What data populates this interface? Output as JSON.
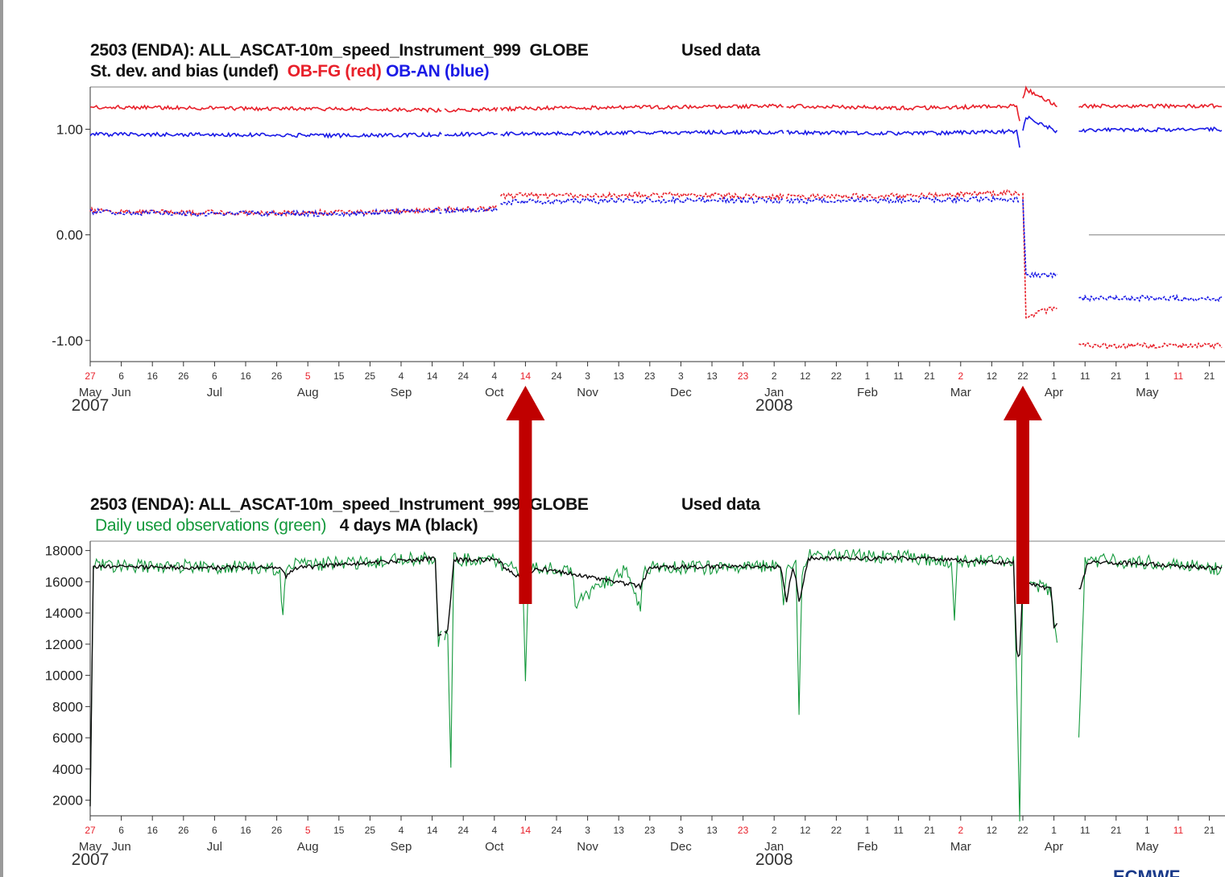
{
  "chart_data": [
    {
      "type": "line",
      "title": "2503 (ENDA): ALL_ASCAT-10m_speed_Instrument_999  GLOBE",
      "status": "Used data",
      "subtitle": {
        "prefix": "St. dev. and bias (undef)",
        "red_label": "OB-FG (red)",
        "blue_label": "OB-AN (blue)"
      },
      "x_range": [
        "2007-05-27",
        "2008-05-25"
      ],
      "ylim": [
        -1.2,
        1.4
      ],
      "y_ticks": [
        {
          "v": 1.0,
          "label": "1.00"
        },
        {
          "v": 0.0,
          "label": "0.00"
        },
        {
          "v": -1.0,
          "label": "-1.00"
        }
      ],
      "data_gaps": [
        [
          "2007-09-17",
          "2007-09-18"
        ],
        [
          "2007-10-05",
          "2007-10-06"
        ],
        [
          "2008-01-05",
          "2008-01-06"
        ],
        [
          "2008-03-21",
          "2008-03-22"
        ],
        [
          "2008-04-02",
          "2008-04-09"
        ]
      ],
      "series": [
        {
          "name": "OB-FG (red)",
          "kind": "stdev",
          "color": "#e8202a",
          "points": [
            [
              "2007-05-27",
              1.21
            ],
            [
              "2007-07-01",
              1.2
            ],
            [
              "2007-08-15",
              1.19
            ],
            [
              "2007-09-17",
              1.18
            ],
            [
              "2007-10-20",
              1.2
            ],
            [
              "2007-12-01",
              1.21
            ],
            [
              "2008-01-05",
              1.22
            ],
            [
              "2008-02-15",
              1.2
            ],
            [
              "2008-03-20",
              1.22
            ],
            [
              "2008-03-21",
              1.08
            ],
            [
              "2008-03-22",
              1.28
            ],
            [
              "2008-03-23",
              1.38
            ],
            [
              "2008-04-02",
              1.22
            ],
            [
              "2008-04-09",
              1.22
            ],
            [
              "2008-05-25",
              1.22
            ]
          ]
        },
        {
          "name": "OB-AN (blue)",
          "kind": "stdev",
          "color": "#1a1ae6",
          "points": [
            [
              "2007-05-27",
              0.95
            ],
            [
              "2007-07-01",
              0.95
            ],
            [
              "2007-08-15",
              0.94
            ],
            [
              "2007-09-17",
              0.95
            ],
            [
              "2007-10-20",
              0.96
            ],
            [
              "2007-12-01",
              0.97
            ],
            [
              "2008-01-05",
              0.97
            ],
            [
              "2008-02-15",
              0.96
            ],
            [
              "2008-03-20",
              0.98
            ],
            [
              "2008-03-21",
              0.82
            ],
            [
              "2008-03-22",
              1.0
            ],
            [
              "2008-03-23",
              1.12
            ],
            [
              "2008-04-02",
              0.98
            ],
            [
              "2008-04-09",
              0.99
            ],
            [
              "2008-05-25",
              1.0
            ]
          ]
        },
        {
          "name": "OB-FG (red)",
          "kind": "bias",
          "color": "#e8202a",
          "points": [
            [
              "2007-05-27",
              0.23
            ],
            [
              "2007-07-01",
              0.21
            ],
            [
              "2007-08-15",
              0.21
            ],
            [
              "2007-09-17",
              0.24
            ],
            [
              "2007-10-05",
              0.25
            ],
            [
              "2007-10-06",
              0.37
            ],
            [
              "2007-12-01",
              0.38
            ],
            [
              "2008-01-05",
              0.36
            ],
            [
              "2008-02-15",
              0.37
            ],
            [
              "2008-03-20",
              0.4
            ],
            [
              "2008-03-22",
              0.38
            ],
            [
              "2008-03-23",
              -0.78
            ],
            [
              "2008-04-02",
              -0.68
            ],
            [
              "2008-04-09",
              -1.05
            ],
            [
              "2008-05-25",
              -1.05
            ]
          ]
        },
        {
          "name": "OB-AN (blue)",
          "kind": "bias",
          "color": "#1a1ae6",
          "points": [
            [
              "2007-05-27",
              0.22
            ],
            [
              "2007-07-01",
              0.2
            ],
            [
              "2007-08-15",
              0.2
            ],
            [
              "2007-09-17",
              0.23
            ],
            [
              "2007-10-05",
              0.24
            ],
            [
              "2007-10-06",
              0.31
            ],
            [
              "2007-12-01",
              0.33
            ],
            [
              "2008-01-05",
              0.32
            ],
            [
              "2008-02-15",
              0.33
            ],
            [
              "2008-03-20",
              0.34
            ],
            [
              "2008-03-22",
              0.32
            ],
            [
              "2008-03-23",
              -0.38
            ],
            [
              "2008-04-02",
              -0.38
            ],
            [
              "2008-04-09",
              -0.6
            ],
            [
              "2008-05-25",
              -0.6
            ]
          ]
        }
      ],
      "annotations": [
        {
          "type": "arrow",
          "at": "2007-10-14",
          "color": "#c00000"
        },
        {
          "type": "arrow",
          "at": "2008-03-22",
          "color": "#c00000"
        }
      ],
      "grid": false,
      "legend_placement": "none"
    },
    {
      "type": "line",
      "title": "2503 (ENDA): ALL_ASCAT-10m_speed_Instrument_999  GLOBE",
      "status": "Used data",
      "subtitle": {
        "green_label": "Daily used observations (green)",
        "black_label": "4 days MA (black)"
      },
      "x_range": [
        "2007-05-27",
        "2008-05-25"
      ],
      "ylim": [
        1000,
        18600
      ],
      "y_ticks": [
        {
          "v": 18000,
          "label": "18000"
        },
        {
          "v": 16000,
          "label": "16000"
        },
        {
          "v": 14000,
          "label": "14000"
        },
        {
          "v": 12000,
          "label": "12000"
        },
        {
          "v": 10000,
          "label": "10000"
        },
        {
          "v": 8000,
          "label": "8000"
        },
        {
          "v": 6000,
          "label": "6000"
        },
        {
          "v": 4000,
          "label": "4000"
        },
        {
          "v": 2000,
          "label": "2000"
        }
      ],
      "data_gaps": [
        [
          "2007-09-17",
          "2007-09-18"
        ],
        [
          "2008-04-02",
          "2008-04-09"
        ]
      ],
      "series": [
        {
          "name": "Daily used observations (green)",
          "color": "#14993c",
          "points": [
            [
              "2007-05-27",
              1500
            ],
            [
              "2007-05-28",
              17200
            ],
            [
              "2007-07-01",
              17100
            ],
            [
              "2007-07-27",
              17000
            ],
            [
              "2007-07-28",
              13600
            ],
            [
              "2007-07-29",
              17200
            ],
            [
              "2007-09-01",
              17500
            ],
            [
              "2007-09-15",
              17700
            ],
            [
              "2007-09-16",
              12400
            ],
            [
              "2007-09-19",
              12800
            ],
            [
              "2007-09-20",
              4400
            ],
            [
              "2007-09-21",
              17600
            ],
            [
              "2007-10-05",
              17500
            ],
            [
              "2007-10-07",
              17100
            ],
            [
              "2007-10-13",
              17000
            ],
            [
              "2007-10-14",
              10100
            ],
            [
              "2007-10-15",
              17000
            ],
            [
              "2007-10-29",
              16900
            ],
            [
              "2007-10-30",
              14800
            ],
            [
              "2007-11-15",
              16900
            ],
            [
              "2007-11-20",
              14500
            ],
            [
              "2007-11-21",
              17100
            ],
            [
              "2007-12-20",
              17000
            ],
            [
              "2008-01-04",
              17100
            ],
            [
              "2008-01-05",
              14600
            ],
            [
              "2008-01-06",
              17000
            ],
            [
              "2008-01-09",
              17100
            ],
            [
              "2008-01-10",
              7200
            ],
            [
              "2008-01-11",
              16800
            ],
            [
              "2008-01-13",
              17900
            ],
            [
              "2008-02-15",
              17700
            ],
            [
              "2008-02-28",
              17300
            ],
            [
              "2008-02-29",
              13600
            ],
            [
              "2008-03-01",
              17500
            ],
            [
              "2008-03-19",
              17400
            ],
            [
              "2008-03-20",
              9400
            ],
            [
              "2008-03-21",
              1200
            ],
            [
              "2008-03-22",
              16500
            ],
            [
              "2008-03-25",
              16000
            ],
            [
              "2008-03-31",
              15600
            ],
            [
              "2008-04-01",
              13200
            ],
            [
              "2008-04-09",
              5800
            ],
            [
              "2008-04-11",
              17500
            ],
            [
              "2008-05-01",
              17400
            ],
            [
              "2008-05-25",
              17000
            ]
          ]
        },
        {
          "name": "4 days MA (black)",
          "color": "#0a0a0a",
          "points": [
            [
              "2007-05-27",
              1500
            ],
            [
              "2007-05-28",
              17000
            ],
            [
              "2007-07-01",
              16900
            ],
            [
              "2007-07-27",
              16900
            ],
            [
              "2007-07-29",
              16300
            ],
            [
              "2007-08-01",
              16900
            ],
            [
              "2007-09-01",
              17300
            ],
            [
              "2007-09-15",
              17500
            ],
            [
              "2007-09-16",
              12500
            ],
            [
              "2007-09-19",
              12900
            ],
            [
              "2007-09-21",
              17400
            ],
            [
              "2007-10-05",
              17400
            ],
            [
              "2007-10-07",
              17000
            ],
            [
              "2007-10-14",
              16000
            ],
            [
              "2007-10-17",
              16900
            ],
            [
              "2007-11-20",
              15700
            ],
            [
              "2007-11-23",
              16900
            ],
            [
              "2007-12-20",
              17000
            ],
            [
              "2008-01-04",
              17000
            ],
            [
              "2008-01-06",
              14700
            ],
            [
              "2008-01-08",
              17000
            ],
            [
              "2008-01-09",
              16300
            ],
            [
              "2008-01-10",
              14600
            ],
            [
              "2008-01-13",
              17500
            ],
            [
              "2008-02-15",
              17500
            ],
            [
              "2008-03-19",
              17200
            ],
            [
              "2008-03-20",
              11500
            ],
            [
              "2008-03-21",
              11200
            ],
            [
              "2008-03-22",
              16000
            ],
            [
              "2008-03-31",
              15500
            ],
            [
              "2008-04-01",
              13000
            ],
            [
              "2008-04-10",
              15800
            ],
            [
              "2008-04-12",
              17300
            ],
            [
              "2008-05-25",
              16900
            ]
          ]
        }
      ],
      "annotations": [
        {
          "type": "arrow",
          "at": "2007-10-14",
          "color": "#c00000"
        },
        {
          "type": "arrow",
          "at": "2008-03-22",
          "color": "#c00000"
        }
      ],
      "grid": false,
      "legend_placement": "none"
    }
  ],
  "x_axis": {
    "ticks": [
      {
        "day": "27",
        "red": true,
        "month": "May"
      },
      {
        "day": "6",
        "red": false,
        "month": "Jun"
      },
      {
        "day": "16",
        "red": false
      },
      {
        "day": "26",
        "red": false
      },
      {
        "day": "6",
        "red": false,
        "month": "Jul"
      },
      {
        "day": "16",
        "red": false
      },
      {
        "day": "26",
        "red": false
      },
      {
        "day": "5",
        "red": true,
        "month": "Aug"
      },
      {
        "day": "15",
        "red": false
      },
      {
        "day": "25",
        "red": false
      },
      {
        "day": "4",
        "red": false,
        "month": "Sep"
      },
      {
        "day": "14",
        "red": false
      },
      {
        "day": "24",
        "red": false
      },
      {
        "day": "4",
        "red": false,
        "month": "Oct"
      },
      {
        "day": "14",
        "red": true
      },
      {
        "day": "24",
        "red": false
      },
      {
        "day": "3",
        "red": false,
        "month": "Nov"
      },
      {
        "day": "13",
        "red": false
      },
      {
        "day": "23",
        "red": false
      },
      {
        "day": "3",
        "red": false,
        "month": "Dec"
      },
      {
        "day": "13",
        "red": false
      },
      {
        "day": "23",
        "red": true
      },
      {
        "day": "2",
        "red": false,
        "month": "Jan"
      },
      {
        "day": "12",
        "red": false
      },
      {
        "day": "22",
        "red": false
      },
      {
        "day": "1",
        "red": false,
        "month": "Feb"
      },
      {
        "day": "11",
        "red": false
      },
      {
        "day": "21",
        "red": false
      },
      {
        "day": "2",
        "red": true,
        "month": "Mar"
      },
      {
        "day": "12",
        "red": false
      },
      {
        "day": "22",
        "red": false
      },
      {
        "day": "1",
        "red": false,
        "month": "Apr"
      },
      {
        "day": "11",
        "red": false
      },
      {
        "day": "21",
        "red": false
      },
      {
        "day": "1",
        "red": false,
        "month": "May"
      },
      {
        "day": "11",
        "red": true
      },
      {
        "day": "21",
        "red": false
      }
    ],
    "years": [
      {
        "label": "2007",
        "at": "2007-05-27"
      },
      {
        "label": "2008",
        "at": "2008-01-02"
      }
    ]
  },
  "footer": {
    "logo": "ECMWF"
  },
  "colors": {
    "arrow": "#c00000",
    "red_series": "#e8202a",
    "blue_series": "#1a1ae6",
    "green_series": "#14993c",
    "black_series": "#0a0a0a"
  }
}
